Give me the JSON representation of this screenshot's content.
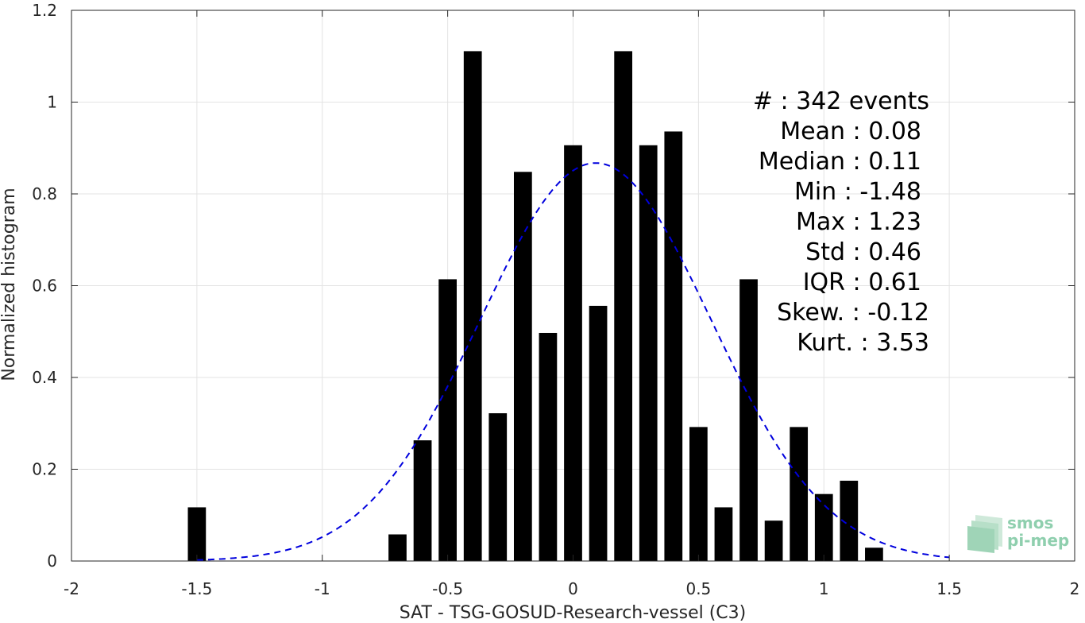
{
  "chart_data": {
    "type": "bar",
    "xlabel": "SAT - TSG-GOSUD-Research-vessel (C3)",
    "ylabel": "Normalized histogram",
    "xlim": [
      -2,
      2
    ],
    "ylim": [
      0,
      1.2
    ],
    "xticks": [
      -2,
      -1.5,
      -1,
      -0.5,
      0,
      0.5,
      1,
      1.5,
      2
    ],
    "xtick_labels": [
      "-2",
      "-1.5",
      "-1",
      "-0.5",
      "0",
      "0.5",
      "1",
      "1.5",
      "2"
    ],
    "yticks": [
      0,
      0.2,
      0.4,
      0.6,
      0.8,
      1,
      1.2
    ],
    "ytick_labels": [
      "0",
      "0.2",
      "0.4",
      "0.6",
      "0.8",
      "1",
      "1.2"
    ],
    "grid": true,
    "bar_color": "#000000",
    "bars": [
      {
        "x": -1.5,
        "y": 0.117
      },
      {
        "x": -0.7,
        "y": 0.058
      },
      {
        "x": -0.6,
        "y": 0.263
      },
      {
        "x": -0.5,
        "y": 0.614
      },
      {
        "x": -0.4,
        "y": 1.111
      },
      {
        "x": -0.3,
        "y": 0.322
      },
      {
        "x": -0.2,
        "y": 0.848
      },
      {
        "x": -0.1,
        "y": 0.497
      },
      {
        "x": 0.0,
        "y": 0.906
      },
      {
        "x": 0.1,
        "y": 0.556
      },
      {
        "x": 0.2,
        "y": 1.111
      },
      {
        "x": 0.3,
        "y": 0.906
      },
      {
        "x": 0.4,
        "y": 0.936
      },
      {
        "x": 0.5,
        "y": 0.292
      },
      {
        "x": 0.6,
        "y": 0.117
      },
      {
        "x": 0.7,
        "y": 0.614
      },
      {
        "x": 0.8,
        "y": 0.088
      },
      {
        "x": 0.9,
        "y": 0.292
      },
      {
        "x": 1.0,
        "y": 0.146
      },
      {
        "x": 1.1,
        "y": 0.175
      },
      {
        "x": 1.2,
        "y": 0.029
      }
    ],
    "fit_curve": {
      "style": "dashed",
      "color": "#0000dd",
      "mean": 0.09,
      "std": 0.46,
      "x_range": [
        -1.5,
        1.5
      ]
    },
    "stats": [
      {
        "label": "#  ",
        "value": "342 events"
      },
      {
        "label": "Mean",
        "value": "0.08"
      },
      {
        "label": "Median",
        "value": "0.11"
      },
      {
        "label": "Min",
        "value": "-1.48"
      },
      {
        "label": "Max",
        "value": "1.23"
      },
      {
        "label": "Std",
        "value": "0.46"
      },
      {
        "label": "IQR",
        "value": "0.61"
      },
      {
        "label": "Skew.",
        "value": "-0.12"
      },
      {
        "label": "Kurt.",
        "value": "3.53"
      }
    ]
  },
  "logo": {
    "line1": "smos",
    "line2": "pi-mep",
    "color": "#8fcfae"
  }
}
